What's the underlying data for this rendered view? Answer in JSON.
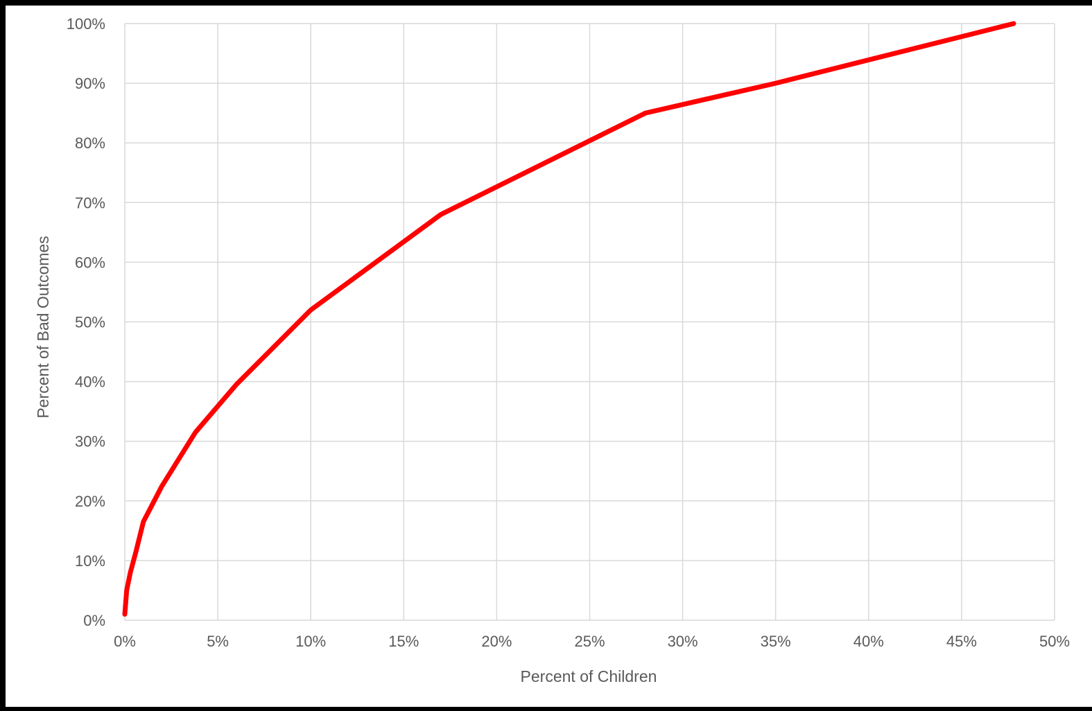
{
  "chart_data": {
    "type": "line",
    "title": "",
    "xlabel": "Percent of Children",
    "ylabel": "Percent of Bad Outcomes",
    "xlim": [
      0,
      50
    ],
    "ylim": [
      0,
      100
    ],
    "x_ticks": [
      "0%",
      "5%",
      "10%",
      "15%",
      "20%",
      "25%",
      "30%",
      "35%",
      "40%",
      "45%",
      "50%"
    ],
    "y_ticks": [
      "0%",
      "10%",
      "20%",
      "30%",
      "40%",
      "50%",
      "60%",
      "70%",
      "80%",
      "90%",
      "100%"
    ],
    "grid": true,
    "legend": "none",
    "series": [
      {
        "color": "#ff0000",
        "x": [
          0,
          0.1,
          0.3,
          0.6,
          1.0,
          2.0,
          3.8,
          6.0,
          10.0,
          17.0,
          28.0,
          35.0,
          47.8
        ],
        "y": [
          1,
          5,
          8,
          11.5,
          16.5,
          22.5,
          31.5,
          39.5,
          52,
          68,
          85,
          90,
          100
        ]
      }
    ]
  }
}
